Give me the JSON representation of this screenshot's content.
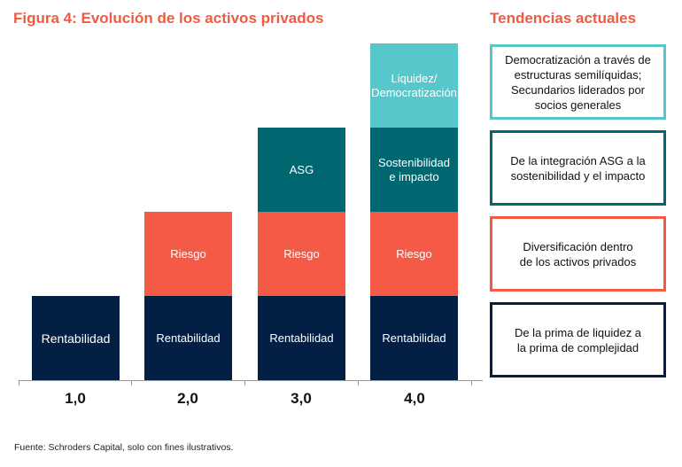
{
  "title": "Figura 4: Evolución de los activos privados",
  "side_title": "Tendencias actuales",
  "colors": {
    "navy": "#031f44",
    "red": "#f45a45",
    "teal": "#006771",
    "cyan": "#56c8cc",
    "title": "#f05a41"
  },
  "columns": [
    {
      "label": "1,0",
      "segments": [
        "Rentabilidad"
      ]
    },
    {
      "label": "2,0",
      "segments": [
        "Rentabilidad",
        "Riesgo"
      ]
    },
    {
      "label": "3,0",
      "segments": [
        "Rentabilidad",
        "Riesgo",
        "ASG"
      ]
    },
    {
      "label": "4,0",
      "segments": [
        "Rentabilidad",
        "Riesgo",
        "Sostenibilidad e impacto",
        "Liquidez/ Democratización"
      ]
    }
  ],
  "trends": [
    "Democratización a través de estructuras semilíquidas; Secundarios liderados por socios generales",
    "De la integración ASG a la sostenibilidad y el impacto",
    "Diversificación dentro de los activos privados",
    "De la prima de liquidez a la prima de complejidad"
  ],
  "footnote": "Fuente: Schroders Capital, solo con fines ilustrativos."
}
